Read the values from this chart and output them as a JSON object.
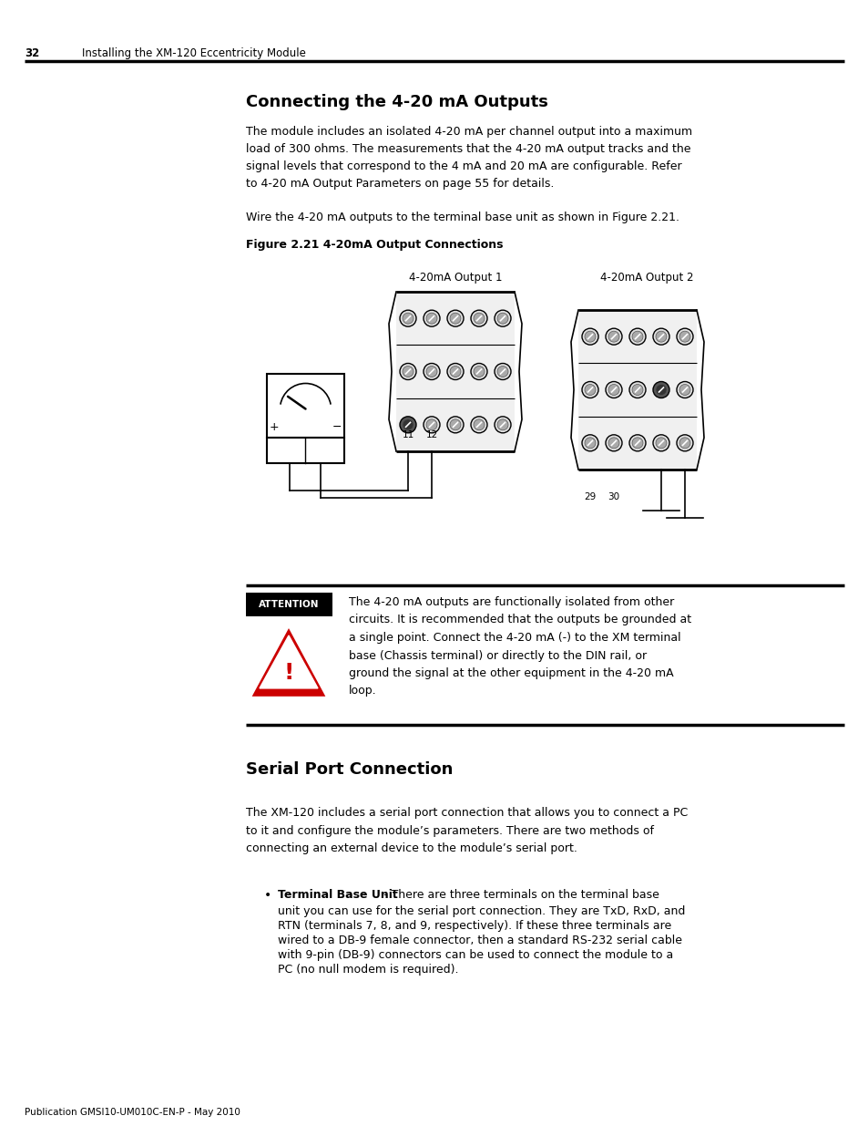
{
  "page_number": "32",
  "header_text": "Installing the XM-120 Eccentricity Module",
  "section1_title": "Connecting the 4-20 mA Outputs",
  "section1_para1": "The module includes an isolated 4-20 mA per channel output into a maximum\nload of 300 ohms. The measurements that the 4-20 mA output tracks and the\nsignal levels that correspond to the 4 mA and 20 mA are configurable. Refer\nto 4-20 mA Output Parameters on page 55 for details.",
  "section1_para2": "Wire the 4-20 mA outputs to the terminal base unit as shown in Figure 2.21.",
  "figure_label": "Figure 2.21 4-20mA Output Connections",
  "output1_label": "4-20mA Output 1",
  "output2_label": "4-20mA Output 2",
  "attention_label": "ATTENTION",
  "attention_text": "The 4-20 mA outputs are functionally isolated from other\ncircuits. It is recommended that the outputs be grounded at\na single point. Connect the 4-20 mA (-) to the XM terminal\nbase (Chassis terminal) or directly to the DIN rail, or\nground the signal at the other equipment in the 4-20 mA\nloop.",
  "section2_title": "Serial Port Connection",
  "section2_para1": "The XM-120 includes a serial port connection that allows you to connect a PC\nto it and configure the module’s parameters. There are two methods of\nconnecting an external device to the module’s serial port.",
  "bullet1_bold": "Terminal Base Unit",
  "bullet1_rest": " - There are three terminals on the terminal base unit you can use for the serial port connection. They are TxD, RxD, and RTN (terminals 7, 8, and 9, respectively). If these three terminals are wired to a DB-9 female connector, then a standard RS-232 serial cable with 9-pin (DB-9) connectors can be used to connect the module to a PC (no null modem is required).",
  "footer_text": "Publication GMSI10-UM010C-EN-P - May 2010",
  "bg_color": "#ffffff",
  "text_color": "#000000",
  "attention_bg": "#000000",
  "attention_text_color": "#ffffff",
  "warning_color": "#cc0000",
  "line_color": "#000000"
}
